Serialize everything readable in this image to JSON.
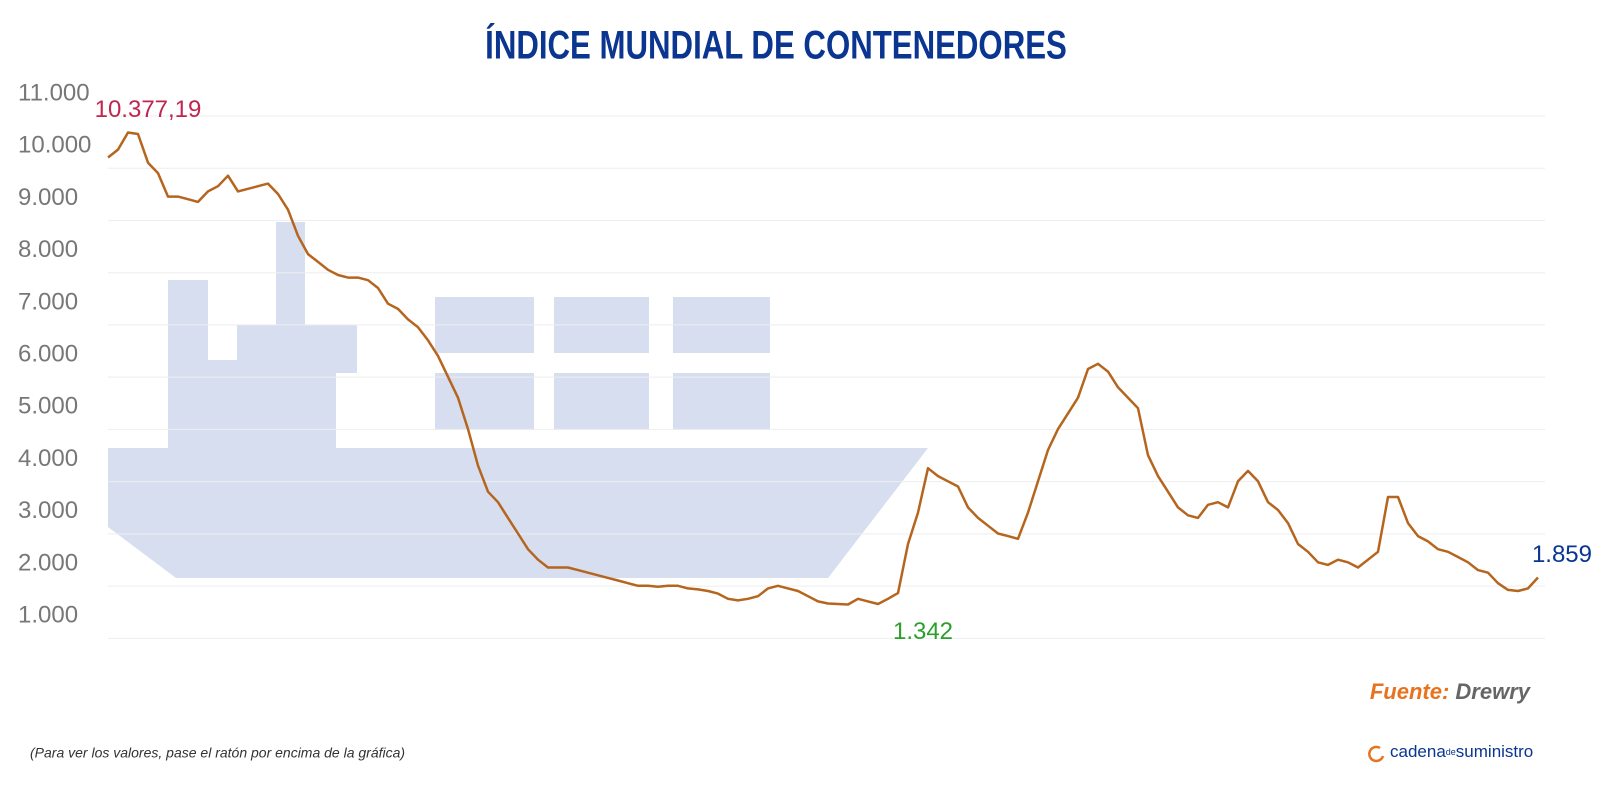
{
  "chart_data": {
    "type": "line",
    "title": "ÍNDICE MUNDIAL DE CONTENEDORES",
    "values": [
      9900,
      10050,
      10377.19,
      10350,
      9800,
      9600,
      9150,
      9150,
      9100,
      9050,
      9250,
      9350,
      9550,
      9250,
      9300,
      9350,
      9400,
      9200,
      8900,
      8400,
      8050,
      7900,
      7750,
      7650,
      7600,
      7600,
      7550,
      7400,
      7100,
      7000,
      6800,
      6650,
      6400,
      6100,
      5700,
      5300,
      4700,
      4000,
      3500,
      3300,
      3000,
      2700,
      2400,
      2200,
      2050,
      2050,
      2050,
      2000,
      1950,
      1900,
      1850,
      1800,
      1750,
      1700,
      1700,
      1680,
      1700,
      1700,
      1650,
      1630,
      1600,
      1550,
      1450,
      1420,
      1450,
      1500,
      1650,
      1700,
      1650,
      1600,
      1500,
      1400,
      1360,
      1350,
      1342,
      1450,
      1400,
      1350,
      1450,
      1560,
      2500,
      3100,
      3950,
      3800,
      3700,
      3600,
      3200,
      3000,
      2850,
      2700,
      2650,
      2600,
      3100,
      3700,
      4300,
      4700,
      5000,
      5300,
      5850,
      5950,
      5800,
      5500,
      5300,
      5100,
      4200,
      3800,
      3500,
      3200,
      3050,
      3000,
      3250,
      3300,
      3200,
      3700,
      3900,
      3700,
      3300,
      3150,
      2900,
      2500,
      2350,
      2150,
      2100,
      2200,
      2150,
      2050,
      2200,
      2350,
      3400,
      3400,
      2900,
      2650,
      2550,
      2400,
      2350,
      2250,
      2150,
      2000,
      1950,
      1750,
      1620,
      1600,
      1650,
      1859
    ],
    "value_labels": [
      null,
      null,
      "10.377,19",
      null,
      null,
      null,
      null,
      null,
      null,
      null,
      null,
      null,
      null,
      null,
      null,
      null,
      null,
      null,
      null,
      null,
      null,
      null,
      null,
      null,
      null,
      null,
      null,
      null,
      null,
      null,
      null,
      null,
      null,
      null,
      null,
      null,
      null,
      null,
      null,
      null,
      null,
      null,
      null,
      null,
      null,
      null,
      null,
      null,
      null,
      null,
      null,
      null,
      null,
      null,
      null,
      null,
      null,
      null,
      null,
      null,
      null,
      null,
      null,
      null,
      null,
      null,
      null,
      null,
      null,
      null,
      null,
      null,
      null,
      null,
      "1.342",
      null,
      null,
      null,
      null,
      null,
      null,
      null,
      null,
      null,
      null,
      null,
      null,
      null,
      null,
      null,
      null,
      null,
      null,
      null,
      null,
      null,
      null,
      null,
      null,
      null,
      null,
      null,
      null,
      null,
      null,
      null,
      null,
      null,
      null,
      null,
      null,
      null,
      null,
      null,
      null,
      null,
      null,
      null,
      null,
      null,
      null,
      null,
      null,
      null,
      null,
      null,
      null,
      null,
      null,
      null,
      null,
      null,
      null,
      null,
      null,
      null,
      null,
      null,
      null,
      null,
      null,
      null,
      null,
      "1.859"
    ],
    "value_label_colors": [
      null,
      null,
      "#c0264f",
      null,
      null,
      null,
      null,
      null,
      null,
      null,
      null,
      null,
      null,
      null,
      null,
      null,
      null,
      null,
      null,
      null,
      null,
      null,
      null,
      null,
      null,
      null,
      null,
      null,
      null,
      null,
      null,
      null,
      null,
      null,
      null,
      null,
      null,
      null,
      null,
      null,
      null,
      null,
      null,
      null,
      null,
      null,
      null,
      null,
      null,
      null,
      null,
      null,
      null,
      null,
      null,
      null,
      null,
      null,
      null,
      null,
      null,
      null,
      null,
      null,
      null,
      null,
      null,
      null,
      null,
      null,
      null,
      null,
      null,
      null,
      "#2aa02a",
      null,
      null,
      null,
      null,
      null,
      null,
      null,
      null,
      null,
      null,
      null,
      null,
      null,
      null,
      null,
      null,
      null,
      null,
      null,
      null,
      null,
      null,
      null,
      null,
      null,
      null,
      null,
      null,
      null,
      null,
      null,
      null,
      null,
      null,
      null,
      null,
      null,
      null,
      null,
      null,
      null,
      null,
      null,
      null,
      null,
      null,
      null,
      null,
      null,
      null,
      null,
      null,
      null,
      null,
      null,
      null,
      null,
      null,
      null,
      null,
      null,
      null,
      null,
      null,
      null,
      null,
      null,
      null,
      "#0a3590"
    ],
    "color": "#b5651d",
    "ylim": [
      700,
      11000
    ],
    "yticks": [
      {
        "value": 1000,
        "label": "1.000"
      },
      {
        "value": 2000,
        "label": "2.000"
      },
      {
        "value": 3000,
        "label": "3.000"
      },
      {
        "value": 4000,
        "label": "4.000"
      },
      {
        "value": 5000,
        "label": "5.000"
      },
      {
        "value": 6000,
        "label": "6.000"
      },
      {
        "value": 7000,
        "label": "7.000"
      },
      {
        "value": 8000,
        "label": "8.000"
      },
      {
        "value": 9000,
        "label": "9.000"
      },
      {
        "value": 10000,
        "label": "10.000"
      },
      {
        "value": 11000,
        "label": "11.000"
      }
    ],
    "grid": true,
    "source_label": "Fuente:",
    "source": "Drewry",
    "note": "(Para ver los valores, pase el ratón por encima de la gráfica)",
    "logo": {
      "part1": "cadena",
      "part2": "de",
      "part3": "suministro"
    }
  }
}
